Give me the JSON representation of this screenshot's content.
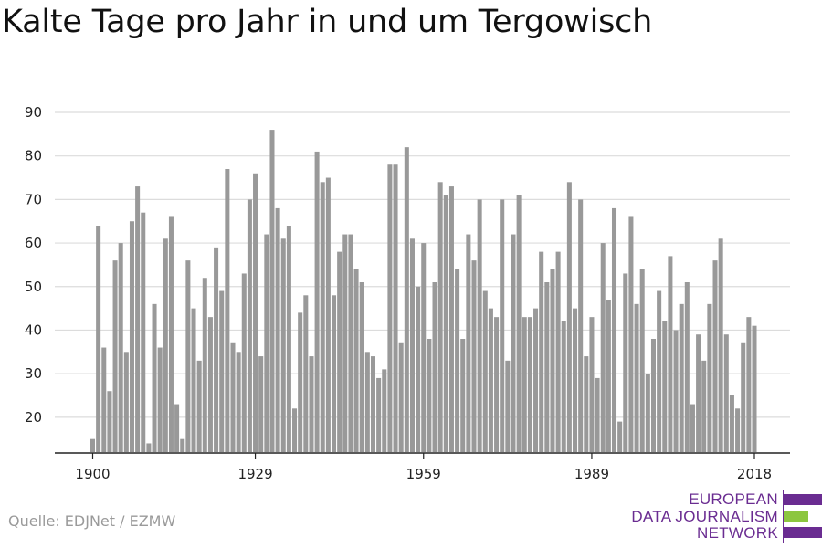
{
  "chart_data": {
    "type": "bar",
    "title": "Kalte Tage pro Jahr in und um Tergowisch",
    "xlabel": "",
    "ylabel": "",
    "x_start": 1900,
    "x_end": 2018,
    "x_ticks": [
      "1900",
      "1929",
      "1959",
      "1989",
      "2018"
    ],
    "y_ticks": [
      "20",
      "30",
      "40",
      "50",
      "60",
      "70",
      "80",
      "90"
    ],
    "ylim": [
      12,
      90
    ],
    "grid": true,
    "bar_color": "#999999",
    "values": [
      15,
      64,
      36,
      26,
      56,
      60,
      35,
      65,
      73,
      67,
      14,
      46,
      36,
      61,
      66,
      23,
      15,
      56,
      45,
      33,
      52,
      43,
      59,
      49,
      77,
      37,
      35,
      53,
      70,
      76,
      34,
      62,
      86,
      68,
      61,
      64,
      22,
      44,
      48,
      34,
      81,
      74,
      75,
      48,
      58,
      62,
      62,
      54,
      51,
      35,
      34,
      29,
      31,
      78,
      78,
      37,
      82,
      61,
      50,
      60,
      38,
      51,
      74,
      71,
      73,
      54,
      38,
      62,
      56,
      70,
      49,
      45,
      43,
      70,
      33,
      62,
      71,
      43,
      43,
      45,
      58,
      51,
      54,
      58,
      42,
      74,
      45,
      70,
      34,
      43,
      29,
      60,
      47,
      68,
      19,
      53,
      66,
      46,
      54,
      30,
      38,
      49,
      42,
      57,
      40,
      46,
      51,
      23,
      39,
      33,
      46,
      56,
      61,
      39,
      25,
      22,
      37,
      43,
      41
    ]
  },
  "source": "Quelle: EDJNet / EZMW",
  "logo": {
    "lines": [
      "EUROPEAN",
      "DATA JOURNALISM",
      "NETWORK"
    ],
    "colors": {
      "purple": "#6a2c91",
      "green": "#8cc63f"
    }
  }
}
